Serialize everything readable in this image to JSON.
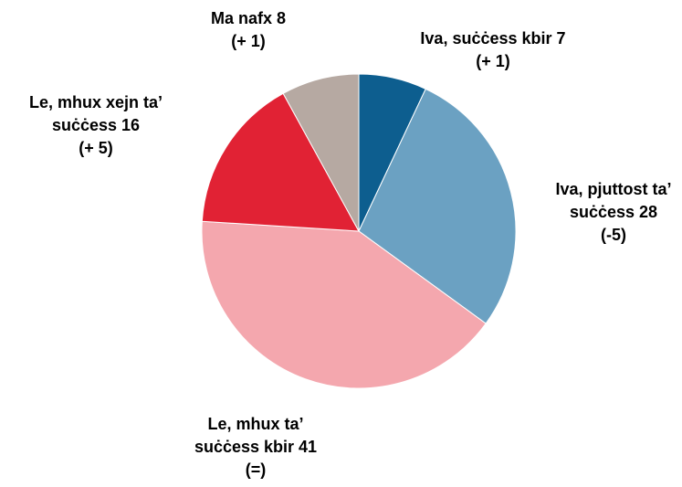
{
  "chart_data": {
    "type": "pie",
    "categories": [
      "Iva, suċċess kbir",
      "Iva, pjuttost ta’ suċċess",
      "Le, mhux ta’ suċċess kbir",
      "Le, mhux xejn ta’ suċċess",
      "Ma nafx"
    ],
    "values": [
      7,
      28,
      41,
      16,
      8
    ],
    "changes": [
      "(+ 1)",
      "(-5)",
      "(=)",
      "(+ 5)",
      "(+ 1)"
    ],
    "colors": [
      "#0d5e8f",
      "#6ba1c2",
      "#f4a7ae",
      "#e12234",
      "#b6a9a2"
    ]
  }
}
